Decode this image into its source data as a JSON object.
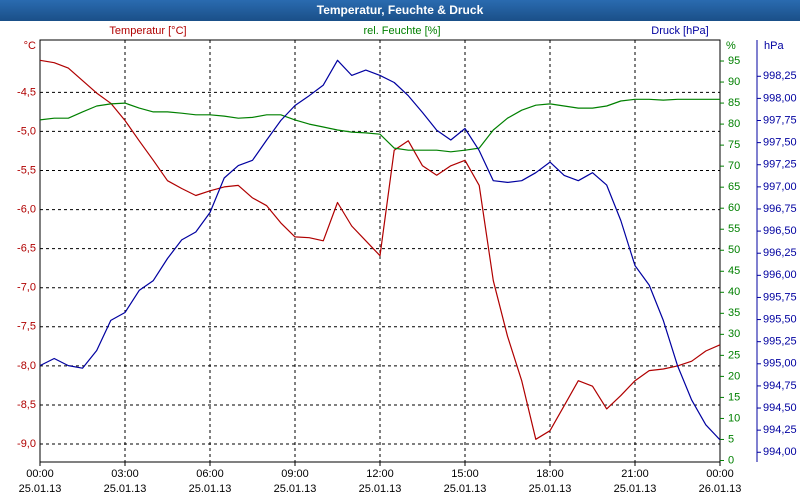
{
  "chart_data": {
    "type": "line",
    "title": "Temperatur, Feuchte & Druck",
    "x": [
      0,
      0.5,
      1,
      1.5,
      2,
      2.5,
      3,
      3.5,
      4,
      4.5,
      5,
      5.5,
      6,
      6.5,
      7,
      7.5,
      8,
      8.5,
      9,
      9.5,
      10,
      10.5,
      11,
      11.5,
      12,
      12.5,
      13,
      13.5,
      14,
      14.5,
      15,
      15.5,
      16,
      16.5,
      17,
      17.5,
      18,
      18.5,
      19,
      19.5,
      20,
      20.5,
      21,
      21.5,
      22,
      22.5,
      23,
      23.5,
      24
    ],
    "xlim": [
      0,
      24
    ],
    "xticks": [
      {
        "value": 0,
        "label": "00:00\n25.01.13"
      },
      {
        "value": 3,
        "label": "03:00\n25.01.13"
      },
      {
        "value": 6,
        "label": "06:00\n25.01.13"
      },
      {
        "value": 9,
        "label": "09:00\n25.01.13"
      },
      {
        "value": 12,
        "label": "12:00\n25.01.13"
      },
      {
        "value": 15,
        "label": "15:00\n25.01.13"
      },
      {
        "value": 18,
        "label": "18:00\n25.01.13"
      },
      {
        "value": 21,
        "label": "21:00\n25.01.13"
      },
      {
        "value": 24,
        "label": "00:00\n26.01.13"
      }
    ],
    "ylabel": "°C",
    "ylim": [
      -9.23,
      -3.83
    ],
    "yticks": [
      {
        "value": -9.0,
        "label": "-9,0"
      },
      {
        "value": -8.5,
        "label": "-8,5"
      },
      {
        "value": -8.0,
        "label": "-8,0"
      },
      {
        "value": -7.5,
        "label": "-7,5"
      },
      {
        "value": -7.0,
        "label": "-7,0"
      },
      {
        "value": -6.5,
        "label": "-6,5"
      },
      {
        "value": -6.0,
        "label": "-6,0"
      },
      {
        "value": -5.5,
        "label": "-5,5"
      },
      {
        "value": -5.0,
        "label": "-5,0"
      },
      {
        "value": -4.5,
        "label": "-4,5"
      }
    ],
    "y2label": "%",
    "y2lim": [
      -0.36,
      100
    ],
    "y2ticks": [
      0,
      5,
      10,
      15,
      20,
      25,
      30,
      35,
      40,
      45,
      50,
      55,
      60,
      65,
      70,
      75,
      80,
      85,
      90,
      95
    ],
    "y3label": "hPa",
    "y3lim": [
      993.89,
      998.66
    ],
    "y3ticks": [
      {
        "value": 994.0,
        "label": "994,00"
      },
      {
        "value": 994.25,
        "label": "994,25"
      },
      {
        "value": 994.5,
        "label": "994,50"
      },
      {
        "value": 994.75,
        "label": "994,75"
      },
      {
        "value": 995.0,
        "label": "995,00"
      },
      {
        "value": 995.25,
        "label": "995,25"
      },
      {
        "value": 995.5,
        "label": "995,50"
      },
      {
        "value": 995.75,
        "label": "995,75"
      },
      {
        "value": 996.0,
        "label": "996,00"
      },
      {
        "value": 996.25,
        "label": "996,25"
      },
      {
        "value": 996.5,
        "label": "996,50"
      },
      {
        "value": 996.75,
        "label": "996,75"
      },
      {
        "value": 997.0,
        "label": "997,00"
      },
      {
        "value": 997.25,
        "label": "997,25"
      },
      {
        "value": 997.5,
        "label": "997,50"
      },
      {
        "value": 997.75,
        "label": "997,75"
      },
      {
        "value": 998.0,
        "label": "998,00"
      },
      {
        "value": 998.25,
        "label": "998,25"
      }
    ],
    "grid": true,
    "series": [
      {
        "name": "Temperatur [°C]",
        "color": "#b00000",
        "axis": "y",
        "values": [
          -4.09,
          -4.12,
          -4.19,
          -4.35,
          -4.51,
          -4.64,
          -4.86,
          -5.12,
          -5.37,
          -5.63,
          -5.73,
          -5.82,
          -5.76,
          -5.71,
          -5.69,
          -5.85,
          -5.95,
          -6.17,
          -6.35,
          -6.36,
          -6.4,
          -5.91,
          -6.21,
          -6.4,
          -6.59,
          -5.24,
          -5.12,
          -5.44,
          -5.56,
          -5.44,
          -5.37,
          -5.69,
          -6.91,
          -7.62,
          -8.19,
          -8.94,
          -8.83,
          -8.51,
          -8.19,
          -8.26,
          -8.55,
          -8.38,
          -8.19,
          -8.06,
          -8.04,
          -8.0,
          -7.94,
          -7.81,
          -7.73
        ]
      },
      {
        "name": "rel. Feuchte [%]",
        "color": "#008000",
        "axis": "y2",
        "values": [
          81.0,
          81.4,
          81.4,
          82.9,
          84.3,
          84.8,
          85.0,
          83.8,
          82.9,
          82.9,
          82.6,
          82.2,
          82.2,
          81.9,
          81.4,
          81.6,
          82.2,
          82.2,
          81.0,
          80.0,
          79.3,
          78.6,
          78.1,
          77.9,
          77.6,
          74.3,
          73.8,
          73.8,
          73.8,
          73.4,
          73.8,
          74.3,
          78.6,
          81.4,
          83.3,
          84.5,
          84.8,
          84.3,
          83.8,
          83.8,
          84.3,
          85.5,
          85.9,
          85.9,
          85.7,
          85.9,
          85.9,
          85.9,
          85.9
        ]
      },
      {
        "name": "Druck [hPa]",
        "color": "#0000a0",
        "axis": "y3",
        "values": [
          994.98,
          995.06,
          994.98,
          994.95,
          995.15,
          995.49,
          995.58,
          995.83,
          995.94,
          996.19,
          996.4,
          996.49,
          996.71,
          997.1,
          997.24,
          997.3,
          997.53,
          997.75,
          997.92,
          998.03,
          998.15,
          998.43,
          998.26,
          998.32,
          998.26,
          998.18,
          998.03,
          997.84,
          997.64,
          997.53,
          997.66,
          997.41,
          997.07,
          997.05,
          997.07,
          997.16,
          997.28,
          997.13,
          997.07,
          997.16,
          997.02,
          996.62,
          996.11,
          995.89,
          995.49,
          994.98,
          994.59,
          994.31,
          994.14
        ]
      }
    ]
  }
}
